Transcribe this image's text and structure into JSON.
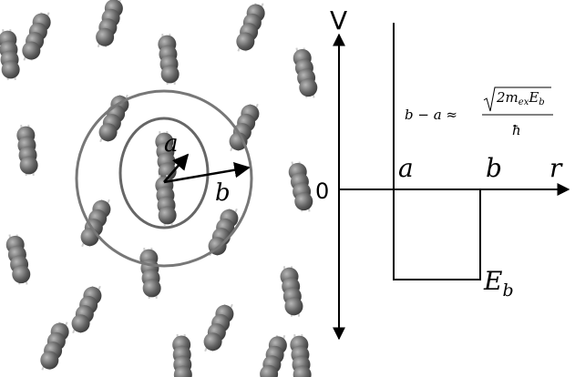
{
  "left_panel": {
    "label_a": "a",
    "label_b": "b"
  },
  "plot": {
    "axis_y": "V",
    "origin": "0",
    "axis_x": "r",
    "mark_a": "a",
    "mark_b": "b",
    "depth_label": {
      "main": "E",
      "sub": "b"
    },
    "formula": {
      "lhs": "b − a ≈",
      "num_main": "2m",
      "num_sub1": "ex",
      "num_mid": "E",
      "num_sub2": "b",
      "denominator": "ħ"
    }
  }
}
